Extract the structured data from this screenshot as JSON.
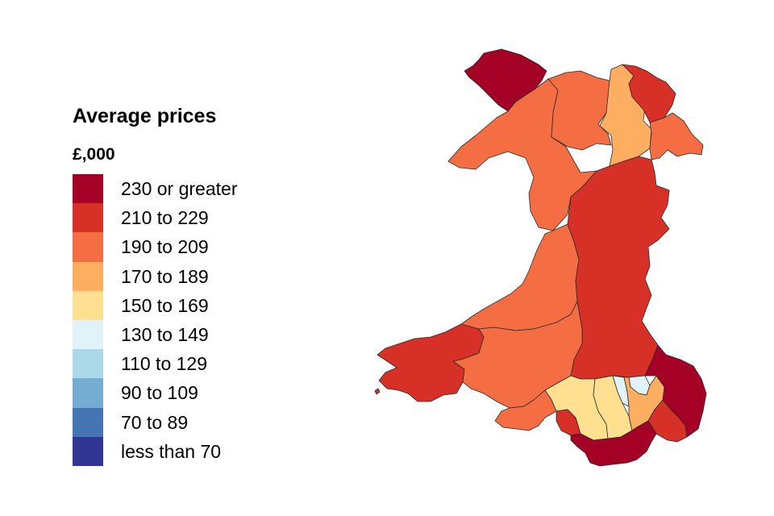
{
  "legend": {
    "title": "Average prices",
    "unit": "£,000",
    "items": [
      {
        "label": "230 or greater",
        "color": "#a50026"
      },
      {
        "label": "210 to 229",
        "color": "#d73027"
      },
      {
        "label": "190 to 209",
        "color": "#f46d43"
      },
      {
        "label": "170 to 189",
        "color": "#fdae61"
      },
      {
        "label": "150 to 169",
        "color": "#fee090"
      },
      {
        "label": "130 to 149",
        "color": "#e0f3f8"
      },
      {
        "label": "110 to 129",
        "color": "#abd9e9"
      },
      {
        "label": "90 to 109",
        "color": "#74add1"
      },
      {
        "label": "70 to 89",
        "color": "#4575b4"
      },
      {
        "label": "less than 70",
        "color": "#313695"
      }
    ]
  },
  "regions": [
    {
      "band": 0
    },
    {
      "band": 2
    },
    {
      "band": 2
    },
    {
      "band": 3
    },
    {
      "band": 1
    },
    {
      "band": 2
    },
    {
      "band": 2
    },
    {
      "band": 1
    },
    {
      "band": 1
    },
    {
      "band": 1
    },
    {
      "band": 2
    },
    {
      "band": 0
    },
    {
      "band": 4
    },
    {
      "band": 2
    },
    {
      "band": 4
    },
    {
      "band": 5
    },
    {
      "band": 5
    },
    {
      "band": 3
    },
    {
      "band": 1
    },
    {
      "band": 0
    }
  ]
}
